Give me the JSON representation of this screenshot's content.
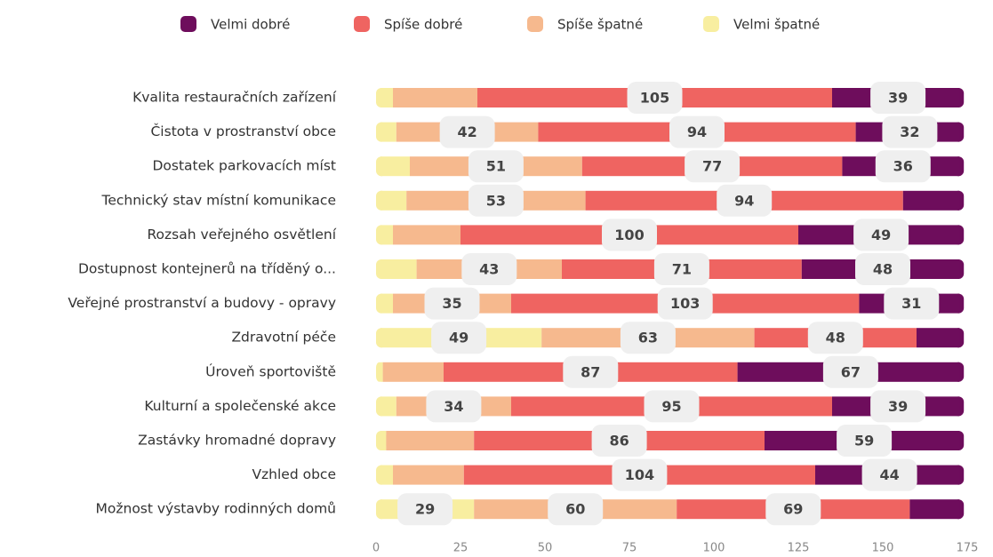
{
  "chart_data": {
    "type": "stacked-barh",
    "categories": [
      "Kvalita restauračních zařízení",
      "Čistota v prostranství obce",
      "Dostatek parkovacích míst",
      "Technický stav místní komunikace",
      "Rozsah veřejného osvětlení",
      "Dostupnost kontejnerů na tříděný o...",
      "Veřejné prostranství a budovy - opravy",
      "Zdravotní péče",
      "Úroveň sportoviště",
      "Kulturní a společenské akce",
      "Zastávky hromadné dopravy",
      "Vzhled obce",
      "Možnost výstavby rodinných domů"
    ],
    "series": [
      {
        "name": "Velmi špatné",
        "color": "#f8eea0",
        "values": [
          5,
          6,
          10,
          9,
          5,
          12,
          5,
          49,
          2,
          6,
          3,
          5,
          29
        ]
      },
      {
        "name": "Spíše špatné",
        "color": "#f6b98e",
        "values": [
          25,
          42,
          51,
          53,
          20,
          43,
          35,
          63,
          18,
          34,
          26,
          21,
          60
        ]
      },
      {
        "name": "Spíše dobré",
        "color": "#ef6461",
        "values": [
          105,
          94,
          77,
          94,
          100,
          71,
          103,
          48,
          87,
          95,
          86,
          104,
          69
        ]
      },
      {
        "name": "Velmi dobré",
        "color": "#6e0d5c",
        "values": [
          39,
          32,
          36,
          18,
          49,
          48,
          31,
          14,
          67,
          39,
          59,
          44,
          16
        ]
      }
    ],
    "legend_order": [
      3,
      2,
      1,
      0
    ],
    "xlim": [
      0,
      175
    ],
    "xticks": [
      0,
      25,
      50,
      75,
      100,
      125,
      150,
      175
    ]
  }
}
